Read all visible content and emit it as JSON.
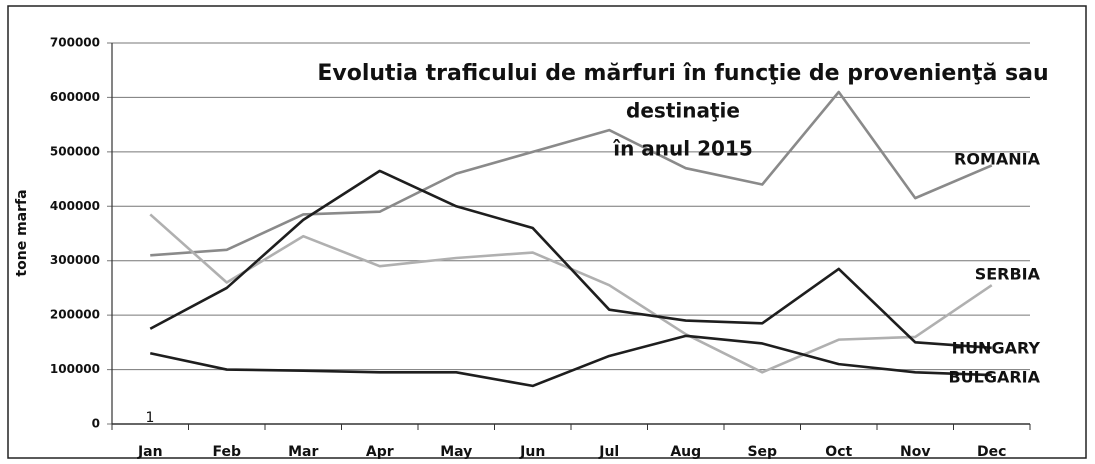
{
  "chart_data": {
    "type": "line",
    "title": [
      "Evolutia traficului de mărfuri în funcţie de provenienţă sau",
      "destinaţie",
      "în anul 2015"
    ],
    "y_label": "tone marfa",
    "annotation": "1",
    "categories": [
      "Jan",
      "Feb",
      "Mar",
      "Apr",
      "May",
      "Jun",
      "Jul",
      "Aug",
      "Sep",
      "Oct",
      "Nov",
      "Dec"
    ],
    "series": [
      {
        "name": "ROMANIA",
        "color": "#8a8a8a",
        "values": [
          310000,
          320000,
          385000,
          390000,
          460000,
          500000,
          540000,
          470000,
          440000,
          610000,
          415000,
          475000
        ]
      },
      {
        "name": "SERBIA",
        "color": "#b0b0b0",
        "values": [
          385000,
          260000,
          345000,
          290000,
          305000,
          315000,
          255000,
          165000,
          95000,
          155000,
          160000,
          255000
        ]
      },
      {
        "name": "HUNGARY",
        "color": "#1e1e1e",
        "values": [
          175000,
          250000,
          375000,
          465000,
          400000,
          360000,
          210000,
          190000,
          185000,
          285000,
          150000,
          140000
        ]
      },
      {
        "name": "BULGARIA",
        "color": "#1e1e1e",
        "values": [
          130000,
          100000,
          98000,
          95000,
          95000,
          70000,
          125000,
          162000,
          148000,
          110000,
          95000,
          90000
        ]
      }
    ],
    "ylim": [
      0,
      700000
    ],
    "yticks": [
      0,
      100000,
      200000,
      300000,
      400000,
      500000,
      600000,
      700000
    ],
    "grid": true
  }
}
